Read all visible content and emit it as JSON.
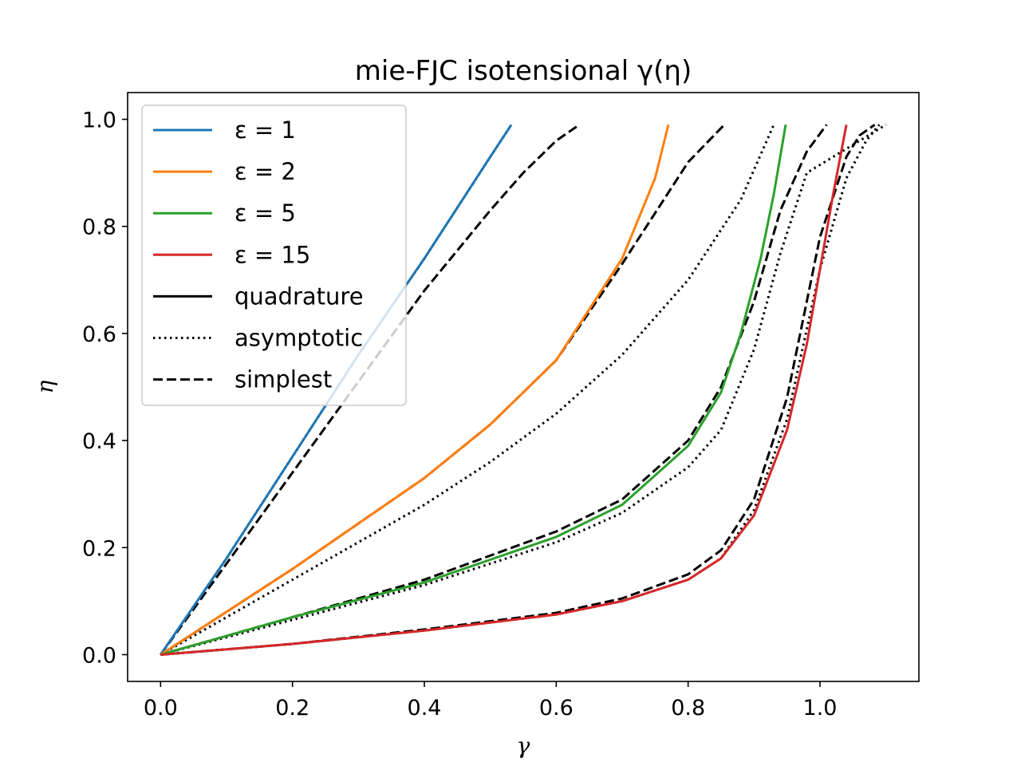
{
  "chart_data": {
    "type": "line",
    "title": "mie-FJC isotensional γ(η)",
    "xlabel": "γ",
    "ylabel": "η",
    "xlim": [
      -0.05,
      1.15
    ],
    "ylim": [
      -0.05,
      1.05
    ],
    "xticks": [
      0.0,
      0.2,
      0.4,
      0.6,
      0.8,
      1.0
    ],
    "yticks": [
      0.0,
      0.2,
      0.4,
      0.6,
      0.8,
      1.0
    ],
    "xtick_labels": [
      "0.0",
      "0.2",
      "0.4",
      "0.6",
      "0.8",
      "1.0"
    ],
    "ytick_labels": [
      "0.0",
      "0.2",
      "0.4",
      "0.6",
      "0.8",
      "1.0"
    ],
    "grid": false,
    "legend_position": "top-left",
    "legend": [
      {
        "label": "ε = 1",
        "style": "solid",
        "color": "#1f77b4"
      },
      {
        "label": "ε = 2",
        "style": "solid",
        "color": "#ff7f0e"
      },
      {
        "label": "ε = 5",
        "style": "solid",
        "color": "#2ca02c"
      },
      {
        "label": "ε = 15",
        "style": "solid",
        "color": "#d62728"
      },
      {
        "label": "quadrature",
        "style": "solid",
        "color": "#000000"
      },
      {
        "label": "asymptotic",
        "style": "dotted",
        "color": "#000000"
      },
      {
        "label": "simplest",
        "style": "dashed",
        "color": "#000000"
      }
    ],
    "series": [
      {
        "name": "ε = 1",
        "method": "quadrature",
        "color": "#1f77b4",
        "style": "solid",
        "x": [
          0.0,
          0.1,
          0.2,
          0.3,
          0.4,
          0.5,
          0.532
        ],
        "y": [
          0.0,
          0.18,
          0.37,
          0.56,
          0.74,
          0.93,
          0.99
        ]
      },
      {
        "name": "ε = 1",
        "method": "asymptotic",
        "color": "#000000",
        "style": "dotted",
        "x": [
          0.0,
          0.1,
          0.2,
          0.3,
          0.4,
          0.5,
          0.532
        ],
        "y": [
          0.0,
          0.18,
          0.37,
          0.56,
          0.74,
          0.93,
          0.99
        ]
      },
      {
        "name": "ε = 1",
        "method": "simplest",
        "color": "#000000",
        "style": "dashed",
        "x": [
          0.0,
          0.1,
          0.2,
          0.3,
          0.4,
          0.5,
          0.55,
          0.6,
          0.635
        ],
        "y": [
          0.0,
          0.17,
          0.34,
          0.51,
          0.68,
          0.83,
          0.9,
          0.96,
          0.99
        ]
      },
      {
        "name": "ε = 2",
        "method": "quadrature",
        "color": "#ff7f0e",
        "style": "solid",
        "x": [
          0.0,
          0.1,
          0.2,
          0.3,
          0.4,
          0.5,
          0.6,
          0.7,
          0.75,
          0.77
        ],
        "y": [
          0.0,
          0.08,
          0.16,
          0.245,
          0.33,
          0.43,
          0.55,
          0.74,
          0.89,
          0.99
        ]
      },
      {
        "name": "ε = 2",
        "method": "asymptotic",
        "color": "#000000",
        "style": "dotted",
        "x": [
          0.0,
          0.1,
          0.2,
          0.3,
          0.4,
          0.5,
          0.6,
          0.7,
          0.8,
          0.88,
          0.93
        ],
        "y": [
          0.0,
          0.07,
          0.14,
          0.21,
          0.28,
          0.36,
          0.45,
          0.56,
          0.7,
          0.85,
          0.99
        ]
      },
      {
        "name": "ε = 2",
        "method": "simplest",
        "color": "#000000",
        "style": "dashed",
        "x": [
          0.0,
          0.1,
          0.2,
          0.3,
          0.4,
          0.5,
          0.6,
          0.7,
          0.8,
          0.855
        ],
        "y": [
          0.0,
          0.08,
          0.16,
          0.245,
          0.33,
          0.43,
          0.55,
          0.73,
          0.92,
          0.99
        ]
      },
      {
        "name": "ε = 5",
        "method": "quadrature",
        "color": "#2ca02c",
        "style": "solid",
        "x": [
          0.0,
          0.2,
          0.4,
          0.6,
          0.7,
          0.8,
          0.85,
          0.88,
          0.91,
          0.93,
          0.948
        ],
        "y": [
          0.0,
          0.07,
          0.135,
          0.22,
          0.28,
          0.39,
          0.49,
          0.6,
          0.74,
          0.86,
          0.99
        ]
      },
      {
        "name": "ε = 5",
        "method": "asymptotic",
        "color": "#000000",
        "style": "dotted",
        "x": [
          0.0,
          0.2,
          0.4,
          0.6,
          0.7,
          0.8,
          0.85,
          0.9,
          0.94,
          0.98,
          1.1
        ],
        "y": [
          0.0,
          0.065,
          0.13,
          0.21,
          0.265,
          0.35,
          0.42,
          0.57,
          0.75,
          0.9,
          0.99
        ]
      },
      {
        "name": "ε = 5",
        "method": "simplest",
        "color": "#000000",
        "style": "dashed",
        "x": [
          0.0,
          0.2,
          0.4,
          0.6,
          0.7,
          0.8,
          0.85,
          0.9,
          0.94,
          0.98,
          1.01
        ],
        "y": [
          0.0,
          0.07,
          0.14,
          0.23,
          0.29,
          0.4,
          0.5,
          0.66,
          0.83,
          0.94,
          0.99
        ]
      },
      {
        "name": "ε = 15",
        "method": "quadrature",
        "color": "#d62728",
        "style": "solid",
        "x": [
          0.0,
          0.2,
          0.4,
          0.6,
          0.7,
          0.8,
          0.85,
          0.9,
          0.95,
          0.98,
          1.0,
          1.02,
          1.04
        ],
        "y": [
          0.0,
          0.02,
          0.045,
          0.075,
          0.1,
          0.14,
          0.18,
          0.26,
          0.42,
          0.58,
          0.72,
          0.86,
          0.99
        ]
      },
      {
        "name": "ε = 15",
        "method": "asymptotic",
        "color": "#000000",
        "style": "dotted",
        "x": [
          0.0,
          0.2,
          0.4,
          0.6,
          0.7,
          0.8,
          0.85,
          0.9,
          0.95,
          1.0,
          1.04,
          1.07,
          1.09
        ],
        "y": [
          0.0,
          0.02,
          0.045,
          0.075,
          0.1,
          0.14,
          0.18,
          0.27,
          0.44,
          0.72,
          0.89,
          0.96,
          0.99
        ]
      },
      {
        "name": "ε = 15",
        "method": "simplest",
        "color": "#000000",
        "style": "dashed",
        "x": [
          0.0,
          0.2,
          0.4,
          0.6,
          0.7,
          0.8,
          0.85,
          0.9,
          0.95,
          1.0,
          1.04,
          1.06,
          1.083
        ],
        "y": [
          0.0,
          0.02,
          0.047,
          0.078,
          0.105,
          0.15,
          0.195,
          0.29,
          0.48,
          0.78,
          0.93,
          0.97,
          0.99
        ]
      }
    ]
  }
}
